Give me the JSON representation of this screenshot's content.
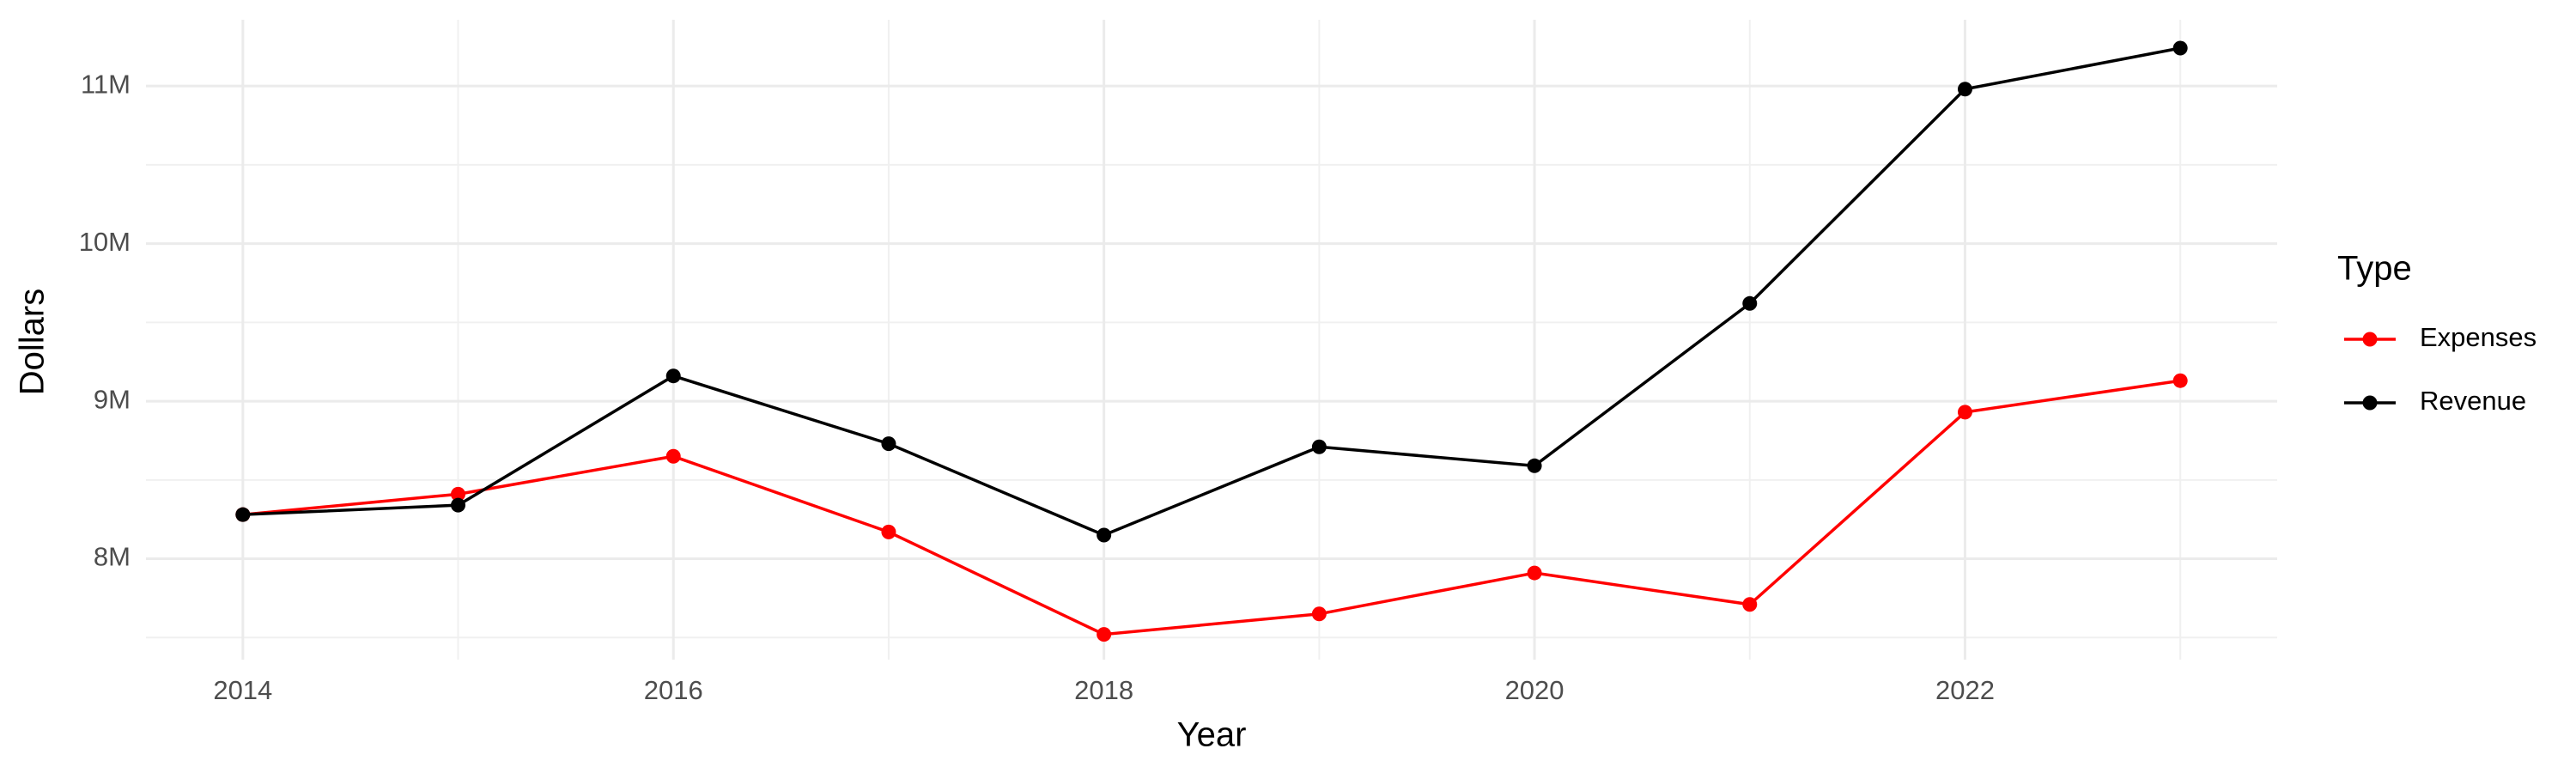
{
  "chart_data": {
    "type": "line",
    "x_label": "Year",
    "y_label": "Dollars",
    "legend_title": "Type",
    "x": [
      2014,
      2015,
      2016,
      2017,
      2018,
      2019,
      2020,
      2021,
      2022,
      2023
    ],
    "series": [
      {
        "name": "Expenses",
        "color": "#ff0000",
        "values": [
          8280000,
          8410000,
          8650000,
          8170000,
          7520000,
          7650000,
          7910000,
          7710000,
          8930000,
          9130000
        ]
      },
      {
        "name": "Revenue",
        "color": "#000000",
        "values": [
          8280000,
          8340000,
          9160000,
          8730000,
          8150000,
          8710000,
          8590000,
          9620000,
          10980000,
          11240000
        ]
      }
    ],
    "xlim": [
      2013.55,
      2023.45
    ],
    "xticks": [
      2014,
      2016,
      2018,
      2020,
      2022
    ],
    "ylim": [
      7360000,
      11420000
    ],
    "yticks": [
      {
        "value": 8000000,
        "label": "8M"
      },
      {
        "value": 9000000,
        "label": "9M"
      },
      {
        "value": 10000000,
        "label": "10M"
      },
      {
        "value": 11000000,
        "label": "11M"
      }
    ],
    "grid": true,
    "legend_position": "right"
  }
}
